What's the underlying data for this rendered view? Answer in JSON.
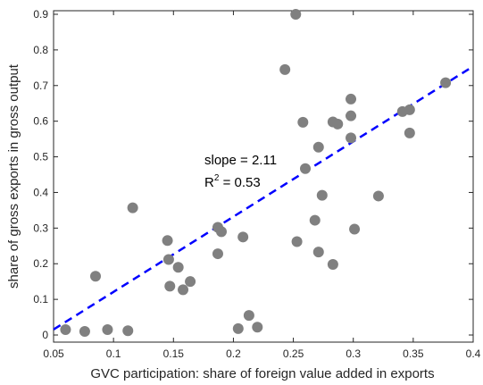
{
  "chart_data": {
    "type": "scatter",
    "xlabel": "GVC participation: share of foreign value added in exports",
    "ylabel": "share of gross exports in gross output",
    "xlim": [
      0.05,
      0.4
    ],
    "ylim": [
      -0.02,
      0.91
    ],
    "x_ticks": [
      "0.05",
      "0.1",
      "0.15",
      "0.2",
      "0.25",
      "0.3",
      "0.35",
      "0.4"
    ],
    "y_ticks": [
      "0",
      "0.1",
      "0.2",
      "0.3",
      "0.4",
      "0.5",
      "0.6",
      "0.7",
      "0.8",
      "0.9"
    ],
    "grid": false,
    "marker_color": "#808080",
    "fit_line": {
      "style": "dashed",
      "color": "#0000ff",
      "slope": 2.11,
      "intercept": -0.09
    },
    "annotations": {
      "slope": "slope = 2.11",
      "r2_prefix": "R",
      "r2_sup": "2",
      "r2_suffix": " = 0.53"
    },
    "points": [
      {
        "x": 0.06,
        "y": 0.015
      },
      {
        "x": 0.076,
        "y": 0.01
      },
      {
        "x": 0.085,
        "y": 0.165
      },
      {
        "x": 0.095,
        "y": 0.015
      },
      {
        "x": 0.112,
        "y": 0.012
      },
      {
        "x": 0.116,
        "y": 0.357
      },
      {
        "x": 0.145,
        "y": 0.265
      },
      {
        "x": 0.146,
        "y": 0.212
      },
      {
        "x": 0.147,
        "y": 0.137
      },
      {
        "x": 0.154,
        "y": 0.19
      },
      {
        "x": 0.158,
        "y": 0.127
      },
      {
        "x": 0.164,
        "y": 0.15
      },
      {
        "x": 0.187,
        "y": 0.302
      },
      {
        "x": 0.187,
        "y": 0.228
      },
      {
        "x": 0.19,
        "y": 0.29
      },
      {
        "x": 0.204,
        "y": 0.018
      },
      {
        "x": 0.208,
        "y": 0.275
      },
      {
        "x": 0.213,
        "y": 0.055
      },
      {
        "x": 0.22,
        "y": 0.022
      },
      {
        "x": 0.243,
        "y": 0.745
      },
      {
        "x": 0.252,
        "y": 0.9
      },
      {
        "x": 0.253,
        "y": 0.262
      },
      {
        "x": 0.258,
        "y": 0.597
      },
      {
        "x": 0.26,
        "y": 0.467
      },
      {
        "x": 0.268,
        "y": 0.322
      },
      {
        "x": 0.271,
        "y": 0.527
      },
      {
        "x": 0.271,
        "y": 0.233
      },
      {
        "x": 0.274,
        "y": 0.392
      },
      {
        "x": 0.283,
        "y": 0.598
      },
      {
        "x": 0.283,
        "y": 0.198
      },
      {
        "x": 0.287,
        "y": 0.592
      },
      {
        "x": 0.298,
        "y": 0.662
      },
      {
        "x": 0.298,
        "y": 0.615
      },
      {
        "x": 0.298,
        "y": 0.553
      },
      {
        "x": 0.301,
        "y": 0.297
      },
      {
        "x": 0.321,
        "y": 0.39
      },
      {
        "x": 0.341,
        "y": 0.627
      },
      {
        "x": 0.347,
        "y": 0.632
      },
      {
        "x": 0.347,
        "y": 0.567
      },
      {
        "x": 0.377,
        "y": 0.708
      }
    ]
  }
}
